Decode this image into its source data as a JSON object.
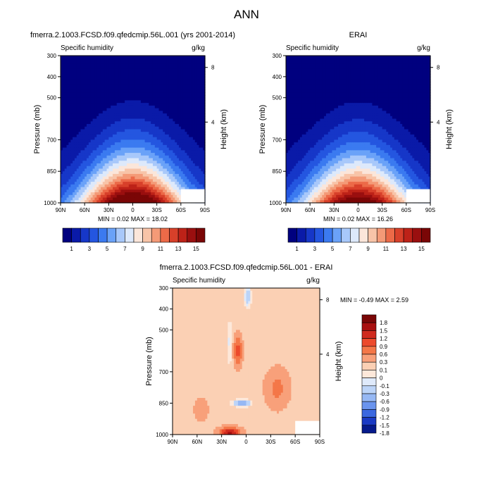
{
  "figure_title": "ANN",
  "chart_data": [
    {
      "type": "heatmap",
      "title": "fmerra.2.1003.FCSD.f09.qfedcmip.56L.001 (yrs 2001-2014)",
      "subtitle_left": "Specific humidity",
      "subtitle_right": "g/kg",
      "ylabel": "Pressure (mb)",
      "y2label": "Height (km)",
      "x_ticks": [
        "90N",
        "60N",
        "30N",
        "0",
        "30S",
        "60S",
        "90S"
      ],
      "y_ticks": [
        "300",
        "400",
        "500",
        "700",
        "850",
        "1000"
      ],
      "y2_ticks": [
        "8",
        "4"
      ],
      "stats": "MIN =  0.02  MAX = 18.02",
      "min": 0.02,
      "max": 18.02,
      "colorbar": {
        "labels": [
          "1",
          "3",
          "5",
          "7",
          "9",
          "11",
          "13",
          "15"
        ],
        "levels": [
          0,
          1,
          2,
          3,
          4,
          5,
          6,
          7,
          8,
          9,
          10,
          11,
          12,
          13,
          14,
          15,
          16
        ]
      }
    },
    {
      "type": "heatmap",
      "title": "ERAI",
      "subtitle_left": "Specific humidity",
      "subtitle_right": "g/kg",
      "ylabel": "Pressure (mb)",
      "y2label": "Height (km)",
      "x_ticks": [
        "90N",
        "60N",
        "30N",
        "0",
        "30S",
        "60S",
        "90S"
      ],
      "y_ticks": [
        "300",
        "400",
        "500",
        "700",
        "850",
        "1000"
      ],
      "y2_ticks": [
        "8",
        "4"
      ],
      "stats": "MIN =  0.02  MAX = 16.26",
      "min": 0.02,
      "max": 16.26,
      "colorbar": {
        "labels": [
          "1",
          "3",
          "5",
          "7",
          "9",
          "11",
          "13",
          "15"
        ],
        "levels": [
          0,
          1,
          2,
          3,
          4,
          5,
          6,
          7,
          8,
          9,
          10,
          11,
          12,
          13,
          14,
          15,
          16
        ]
      }
    },
    {
      "type": "heatmap",
      "title": "fmerra.2.1003.FCSD.f09.qfedcmip.56L.001 - ERAI",
      "subtitle_left": "Specific humidity",
      "subtitle_right": "g/kg",
      "ylabel": "Pressure (mb)",
      "y2label": "Height (km)",
      "x_ticks": [
        "90N",
        "60N",
        "30N",
        "0",
        "30S",
        "60S",
        "90S"
      ],
      "y_ticks": [
        "300",
        "400",
        "500",
        "700",
        "850",
        "1000"
      ],
      "y2_ticks": [
        "8",
        "4"
      ],
      "stats": "MIN = -0.49  MAX =   2.59",
      "min": -0.49,
      "max": 2.59,
      "colorbar": {
        "labels": [
          "1.8",
          "1.5",
          "1.2",
          "0.9",
          "0.6",
          "0.3",
          "0.1",
          "0",
          "-0.1",
          "-0.3",
          "-0.6",
          "-0.9",
          "-1.2",
          "-1.5",
          "-1.8"
        ]
      }
    }
  ],
  "colors": {
    "seq": [
      "#00007f",
      "#0a1aa8",
      "#1637c8",
      "#2456e0",
      "#3b7af0",
      "#6aa2f8",
      "#a8c8fa",
      "#dde9fb",
      "#fbe6da",
      "#f8c4a8",
      "#f49a77",
      "#ec6a48",
      "#d8402a",
      "#bd2218",
      "#9a0f0f",
      "#7a0606"
    ],
    "diff": [
      "#7a0606",
      "#a80f0f",
      "#d02a1e",
      "#ec4a2c",
      "#f47748",
      "#f8a07a",
      "#fbd0b4",
      "#fde8da",
      "#dfeafb",
      "#bcd4f8",
      "#96b8f4",
      "#6a94ee",
      "#3b68e0",
      "#1a3ac4",
      "#061a8c"
    ]
  }
}
